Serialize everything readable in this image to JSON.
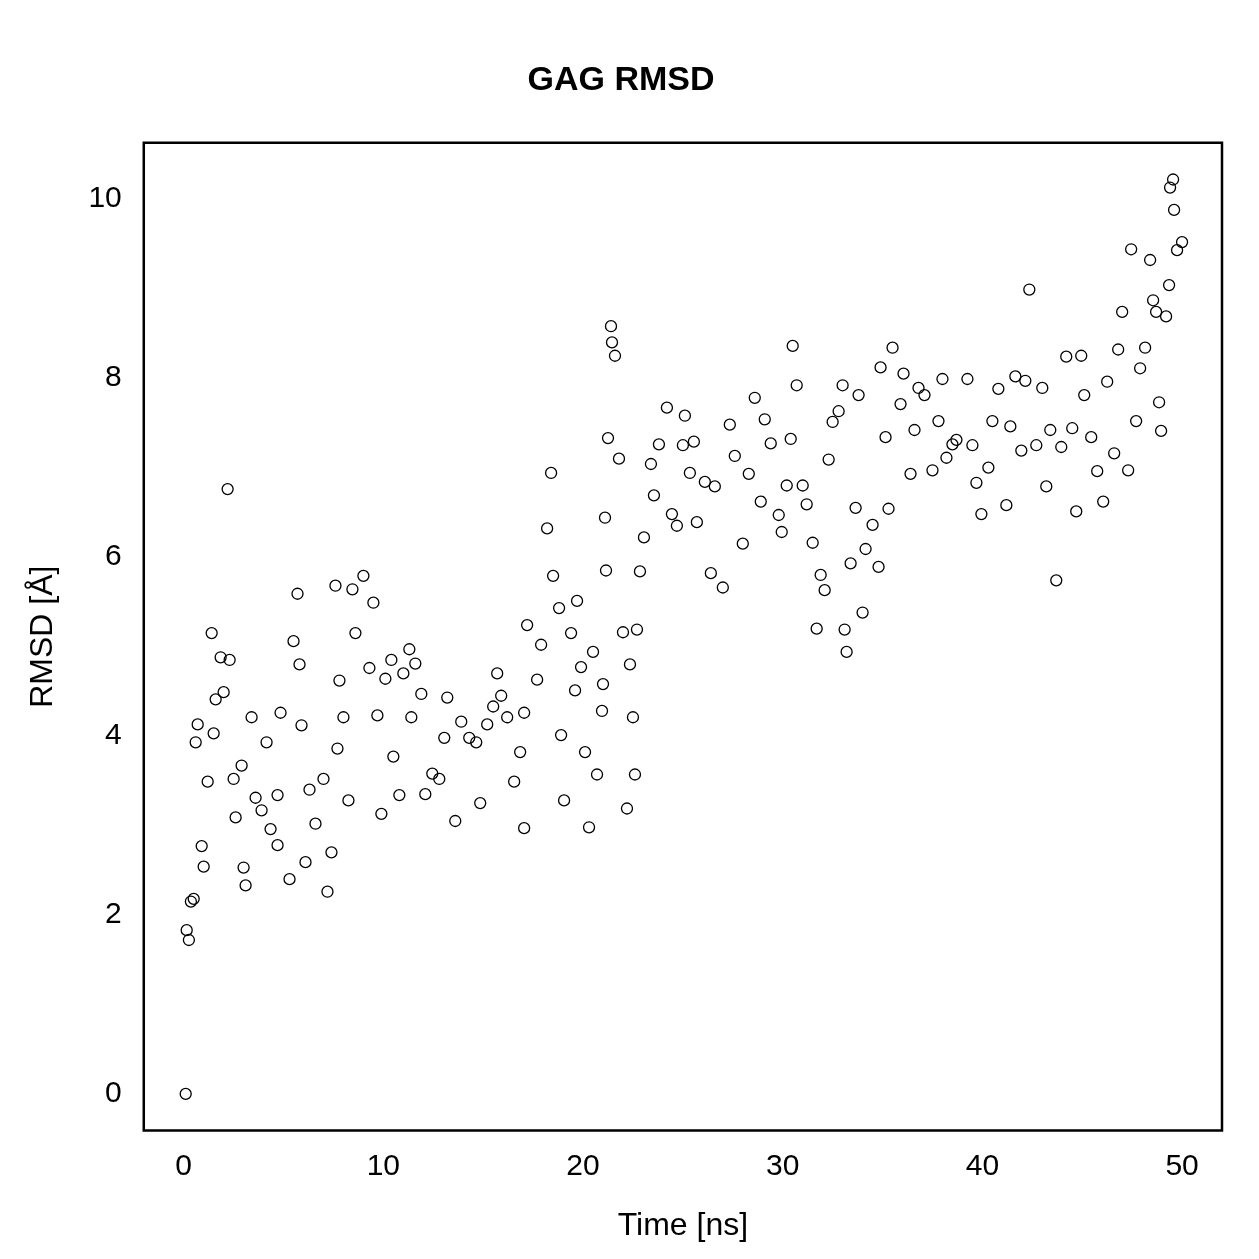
{
  "chart_data": {
    "type": "scatter",
    "title": "GAG RMSD",
    "xlabel": "Time [ns]",
    "ylabel": "RMSD [Å]",
    "marker": "circle",
    "color": "#000000",
    "xlim": [
      -2,
      52
    ],
    "xticks": [
      0,
      10,
      20,
      30,
      40,
      50
    ],
    "ylim": [
      -0.41,
      10.63
    ],
    "yticks": [
      0,
      2,
      4,
      6,
      8,
      10
    ],
    "x": [
      0.1,
      0.15,
      0.26,
      0.36,
      0.5,
      0.7,
      0.6,
      0.9,
      1.0,
      1.2,
      1.4,
      1.5,
      1.85,
      2.2,
      2.3,
      2.0,
      1.6,
      2.5,
      2.6,
      2.9,
      3.0,
      3.1,
      3.4,
      3.6,
      3.9,
      4.15,
      4.35,
      4.7,
      4.85,
      4.7,
      5.3,
      5.5,
      5.7,
      5.8,
      5.9,
      6.1,
      6.3,
      6.6,
      7.0,
      7.2,
      7.4,
      7.6,
      7.7,
      7.8,
      8.0,
      8.25,
      8.45,
      8.6,
      9.0,
      9.3,
      9.5,
      9.7,
      9.9,
      10.1,
      10.4,
      10.5,
      10.8,
      11.0,
      11.3,
      11.4,
      11.6,
      11.9,
      12.1,
      12.45,
      12.8,
      13.05,
      13.2,
      13.6,
      13.9,
      14.3,
      14.65,
      14.85,
      15.2,
      15.5,
      15.7,
      15.9,
      16.2,
      16.55,
      16.85,
      17.05,
      17.05,
      17.2,
      17.7,
      17.9,
      18.2,
      18.4,
      18.5,
      18.8,
      18.9,
      19.05,
      19.4,
      19.6,
      19.7,
      19.9,
      20.1,
      20.3,
      20.5,
      20.7,
      20.95,
      21.0,
      21.1,
      21.15,
      21.25,
      21.4,
      21.45,
      21.6,
      21.8,
      22.0,
      22.2,
      22.35,
      22.5,
      22.6,
      22.7,
      22.85,
      23.05,
      23.4,
      23.55,
      23.8,
      24.2,
      24.45,
      24.7,
      25.0,
      25.1,
      25.35,
      25.55,
      25.7,
      26.1,
      26.4,
      26.6,
      27.0,
      27.35,
      27.6,
      28.0,
      28.3,
      28.6,
      28.9,
      29.1,
      29.4,
      29.8,
      29.95,
      30.2,
      30.4,
      30.5,
      30.7,
      31.0,
      31.2,
      31.5,
      31.7,
      31.9,
      32.1,
      32.3,
      32.5,
      32.8,
      33.0,
      33.1,
      33.2,
      33.4,
      33.65,
      33.8,
      34.0,
      34.15,
      34.5,
      34.8,
      34.9,
      35.15,
      35.3,
      35.5,
      35.9,
      36.05,
      36.4,
      36.6,
      36.8,
      37.1,
      37.5,
      37.8,
      38.0,
      38.2,
      38.5,
      38.7,
      39.25,
      39.5,
      39.7,
      39.95,
      40.3,
      40.5,
      40.8,
      41.2,
      41.4,
      41.65,
      41.95,
      42.15,
      42.35,
      42.7,
      43.0,
      43.2,
      43.4,
      43.7,
      43.95,
      44.2,
      44.5,
      44.7,
      44.95,
      45.1,
      45.45,
      45.75,
      46.05,
      46.25,
      46.6,
      46.8,
      47.0,
      47.3,
      47.45,
      47.7,
      47.9,
      48.15,
      48.4,
      48.55,
      48.7,
      48.85,
      48.95,
      49.2,
      49.35,
      49.4,
      49.55,
      49.6,
      49.75,
      50.0
    ],
    "values": [
      0,
      1.83,
      1.72,
      2.15,
      2.18,
      4.13,
      3.93,
      2.77,
      2.54,
      3.49,
      5.15,
      4.03,
      4.88,
      6.76,
      4.85,
      4.49,
      4.41,
      3.52,
      3.09,
      3.67,
      2.53,
      2.33,
      4.21,
      3.31,
      3.17,
      3.93,
      2.96,
      3.34,
      4.26,
      2.78,
      2.4,
      5.06,
      5.59,
      4.8,
      4.12,
      2.59,
      3.4,
      3.02,
      3.52,
      2.26,
      2.7,
      5.68,
      3.86,
      4.62,
      4.21,
      3.28,
      5.64,
      5.15,
      5.79,
      4.76,
      5.49,
      4.23,
      3.13,
      4.64,
      4.85,
      3.77,
      3.34,
      4.7,
      4.97,
      4.21,
      4.81,
      4.47,
      3.35,
      3.58,
      3.52,
      3.98,
      4.43,
      3.05,
      4.16,
      3.98,
      3.93,
      3.25,
      4.13,
      4.33,
      4.7,
      4.45,
      4.21,
      3.49,
      3.82,
      4.26,
      2.97,
      5.24,
      4.63,
      5.02,
      6.32,
      6.94,
      5.79,
      5.43,
      4.01,
      3.28,
      5.15,
      4.51,
      5.51,
      4.77,
      3.82,
      2.98,
      4.94,
      3.57,
      4.28,
      4.58,
      6.44,
      5.85,
      7.33,
      8.58,
      8.4,
      8.25,
      7.1,
      5.16,
      3.19,
      4.8,
      4.21,
      3.57,
      5.19,
      5.84,
      6.22,
      7.04,
      6.69,
      7.26,
      7.67,
      6.48,
      6.35,
      7.25,
      7.58,
      6.94,
      7.29,
      6.39,
      6.84,
      5.82,
      6.79,
      5.66,
      7.48,
      7.13,
      6.15,
      6.93,
      7.78,
      6.62,
      7.54,
      7.27,
      6.47,
      6.28,
      6.8,
      7.32,
      8.36,
      7.92,
      6.8,
      6.59,
      6.16,
      5.2,
      5.8,
      5.63,
      7.09,
      7.51,
      7.63,
      7.92,
      5.19,
      4.94,
      5.93,
      6.55,
      7.81,
      5.38,
      6.09,
      6.36,
      5.89,
      8.12,
      7.34,
      6.54,
      8.34,
      7.71,
      8.05,
      6.93,
      7.42,
      7.89,
      7.81,
      6.97,
      7.52,
      7.99,
      7.11,
      7.26,
      7.31,
      7.99,
      7.25,
      6.83,
      6.48,
      7.0,
      7.52,
      7.88,
      6.58,
      7.46,
      8.02,
      7.19,
      7.97,
      8.99,
      7.25,
      7.89,
      6.79,
      7.42,
      5.74,
      7.23,
      8.24,
      7.44,
      6.51,
      8.25,
      7.81,
      7.34,
      6.96,
      6.62,
      7.96,
      7.16,
      8.32,
      8.74,
      6.97,
      9.44,
      7.52,
      8.11,
      8.34,
      9.32,
      8.87,
      8.74,
      7.73,
      7.41,
      8.69,
      9.04,
      10.13,
      10.22,
      9.88,
      9.43,
      9.52
    ]
  }
}
